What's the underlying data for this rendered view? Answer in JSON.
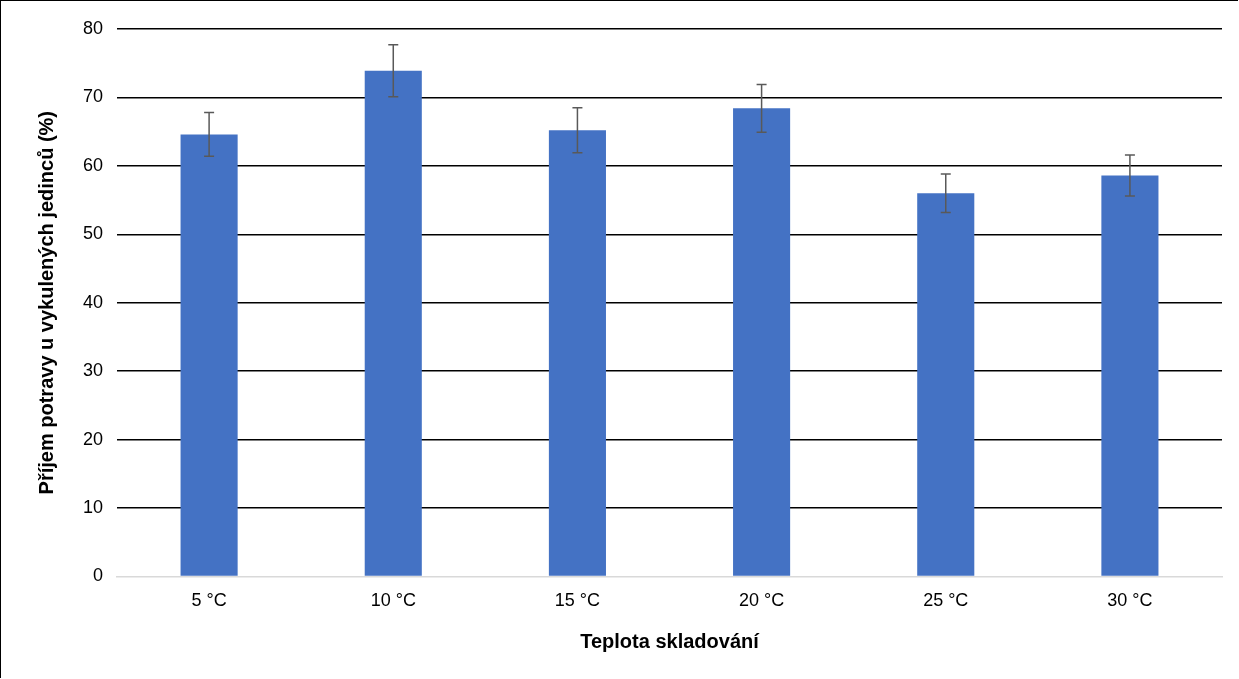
{
  "chart_data": {
    "type": "bar",
    "xlabel": "Teplota skladování",
    "ylabel": "Příjem potravy u vykulených jedinců (%)",
    "categories": [
      "5 °C",
      "10 °C",
      "15 °C",
      "20 °C",
      "25 °C",
      "30 °C"
    ],
    "values": [
      64.6,
      73.9,
      65.2,
      68.4,
      56.0,
      58.6
    ],
    "errors": [
      3.2,
      3.8,
      3.3,
      3.5,
      2.8,
      3.0
    ],
    "color": "#4472c4",
    "ylim": [
      0,
      80
    ],
    "yticks": [
      0,
      10,
      20,
      30,
      40,
      50,
      60,
      70,
      80
    ],
    "grid": "y",
    "legend": false
  }
}
